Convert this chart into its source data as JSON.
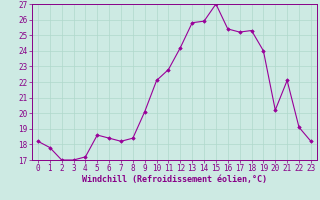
{
  "x": [
    0,
    1,
    2,
    3,
    4,
    5,
    6,
    7,
    8,
    9,
    10,
    11,
    12,
    13,
    14,
    15,
    16,
    17,
    18,
    19,
    20,
    21,
    22,
    23
  ],
  "y": [
    18.2,
    17.8,
    17.0,
    17.0,
    17.2,
    18.6,
    18.4,
    18.2,
    18.4,
    20.1,
    22.1,
    22.8,
    24.2,
    25.8,
    25.9,
    27.0,
    25.4,
    25.2,
    25.3,
    24.0,
    20.2,
    22.1,
    19.1,
    18.2
  ],
  "line_color": "#990099",
  "marker": "D",
  "marker_size": 1.8,
  "line_width": 0.8,
  "xlabel": "Windchill (Refroidissement éolien,°C)",
  "xlabel_fontsize": 6.0,
  "ylim": [
    17,
    27
  ],
  "xlim": [
    -0.5,
    23.5
  ],
  "yticks": [
    17,
    18,
    19,
    20,
    21,
    22,
    23,
    24,
    25,
    26,
    27
  ],
  "xticks": [
    0,
    1,
    2,
    3,
    4,
    5,
    6,
    7,
    8,
    9,
    10,
    11,
    12,
    13,
    14,
    15,
    16,
    17,
    18,
    19,
    20,
    21,
    22,
    23
  ],
  "grid_color": "#b0d8cc",
  "background_color": "#cdeae3",
  "tick_color": "#880088",
  "tick_fontsize": 5.5,
  "figure_bg": "#cdeae3",
  "spine_color": "#880088"
}
